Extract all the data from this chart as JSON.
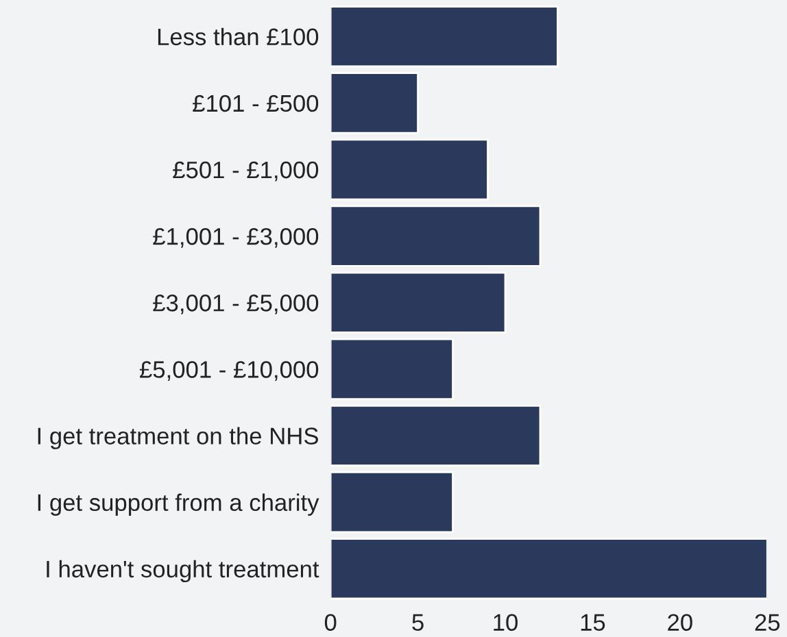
{
  "chart_data": {
    "type": "bar",
    "orientation": "horizontal",
    "categories": [
      "Less than £100",
      "£101 - £500",
      "£501 - £1,000",
      "£1,001 - £3,000",
      "£3,001 - £5,000",
      "£5,001 - £10,000",
      "I get treatment on the NHS",
      "I get support from a charity",
      "I haven't sought treatment"
    ],
    "values": [
      13,
      5,
      9,
      12,
      10,
      7,
      12,
      7,
      25
    ],
    "color": "#2b3a5c",
    "xlim": [
      0,
      25
    ],
    "xticks": [
      0,
      5,
      10,
      15,
      20,
      25
    ],
    "grid": false,
    "legend": false
  }
}
